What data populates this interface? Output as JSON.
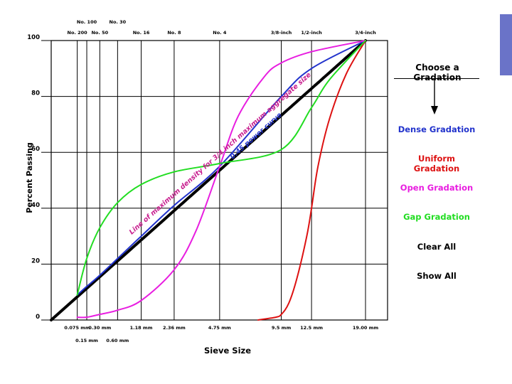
{
  "chart_data": {
    "type": "line",
    "ylabel": "Percent Passing",
    "xlabel": "Sieve Size",
    "ylim": [
      0,
      100
    ],
    "y_ticks": [
      0,
      20,
      40,
      60,
      80,
      100
    ],
    "x_scale": "0.45 power",
    "x_tick_sizes_mm": [
      0.075,
      0.15,
      0.3,
      0.6,
      1.18,
      2.36,
      4.75,
      9.5,
      12.5,
      19.0
    ],
    "x_bottom_labels": [
      {
        "mm": 0.075,
        "text": "0.075 mm"
      },
      {
        "mm": 0.3,
        "text": "0.30 mm"
      },
      {
        "mm": 1.18,
        "text": "1.18 mm"
      },
      {
        "mm": 2.36,
        "text": "2.36 mm"
      },
      {
        "mm": 4.75,
        "text": "4.75 mm"
      },
      {
        "mm": 9.5,
        "text": "9.5 mm"
      },
      {
        "mm": 12.5,
        "text": "12.5 mm"
      },
      {
        "mm": 19.0,
        "text": "19.00 mm"
      }
    ],
    "x_bottom_labels_row2": [
      {
        "mm": 0.15,
        "text": "0.15 mm"
      },
      {
        "mm": 0.6,
        "text": "0.60 mm"
      }
    ],
    "x_top_labels": [
      {
        "mm": 0.075,
        "text": "No. 200"
      },
      {
        "mm": 0.3,
        "text": "No. 50"
      },
      {
        "mm": 1.18,
        "text": "No. 16"
      },
      {
        "mm": 2.36,
        "text": "No. 8"
      },
      {
        "mm": 4.75,
        "text": "No. 4"
      },
      {
        "mm": 9.5,
        "text": "3/8-inch"
      },
      {
        "mm": 12.5,
        "text": "1/2-inch"
      },
      {
        "mm": 19.0,
        "text": "3/4-inch"
      }
    ],
    "x_top_labels_row2": [
      {
        "mm": 0.15,
        "text": "No. 100"
      },
      {
        "mm": 0.6,
        "text": "No. 30"
      }
    ],
    "series": [
      {
        "id": "max-density",
        "color": "#000000",
        "width": 4,
        "x": [
          0,
          19.0
        ],
        "y": [
          0,
          100
        ]
      },
      {
        "id": "dense",
        "color": "#2233cc",
        "width": 2,
        "x": [
          0.075,
          0.15,
          0.3,
          0.6,
          1.18,
          2.36,
          4.75,
          9.5,
          12.5,
          19.0
        ],
        "y": [
          9,
          12,
          16,
          22,
          30,
          41,
          55,
          80,
          90,
          100
        ]
      },
      {
        "id": "uniform",
        "color": "#dd1111",
        "width": 2,
        "x": [
          7.5,
          9.0,
          9.5,
          10.2,
          11.0,
          12.0,
          12.5,
          13.2,
          14.5,
          16.5,
          19.0
        ],
        "y": [
          0,
          1,
          2,
          6,
          15,
          30,
          40,
          55,
          72,
          88,
          100
        ]
      },
      {
        "id": "open",
        "color": "#e81ee0",
        "width": 2,
        "x": [
          0.075,
          0.15,
          0.3,
          0.6,
          1.18,
          2.36,
          3.4,
          4.75,
          6.0,
          8.0,
          9.5,
          12.5,
          19.0
        ],
        "y": [
          1,
          1,
          2,
          3.5,
          7,
          18,
          32,
          55,
          73,
          87,
          92,
          96,
          100
        ]
      },
      {
        "id": "gap",
        "color": "#22dd22",
        "width": 2,
        "x": [
          0.075,
          0.15,
          0.3,
          0.6,
          1.18,
          2.36,
          4.75,
          9.5,
          12.5,
          14.5,
          19.0
        ],
        "y": [
          9,
          22,
          33,
          42,
          48.5,
          53,
          56,
          61,
          76,
          86,
          100
        ]
      }
    ],
    "annotations": [
      {
        "text": "0.45 power curve",
        "color": "#2233cc",
        "at_mm": 5.6,
        "at_y": 58
      },
      {
        "text": "Line of maximum density for 3/4 inch maximum aggregate size",
        "color": "#c81d8e",
        "at_mm": 0.92,
        "at_y": 31
      }
    ],
    "grid": true
  },
  "menu": {
    "title": "Choose a Gradation",
    "items": [
      {
        "label": "Dense Gradation",
        "color": "#2233cc"
      },
      {
        "label": "Uniform Gradation",
        "color": "#dd1111"
      },
      {
        "label": "Open Gradation",
        "color": "#e81ee0"
      },
      {
        "label": "Gap Gradation",
        "color": "#22dd22"
      },
      {
        "label": "Clear All",
        "color": "#000000"
      },
      {
        "label": "Show All",
        "color": "#000000"
      }
    ]
  }
}
